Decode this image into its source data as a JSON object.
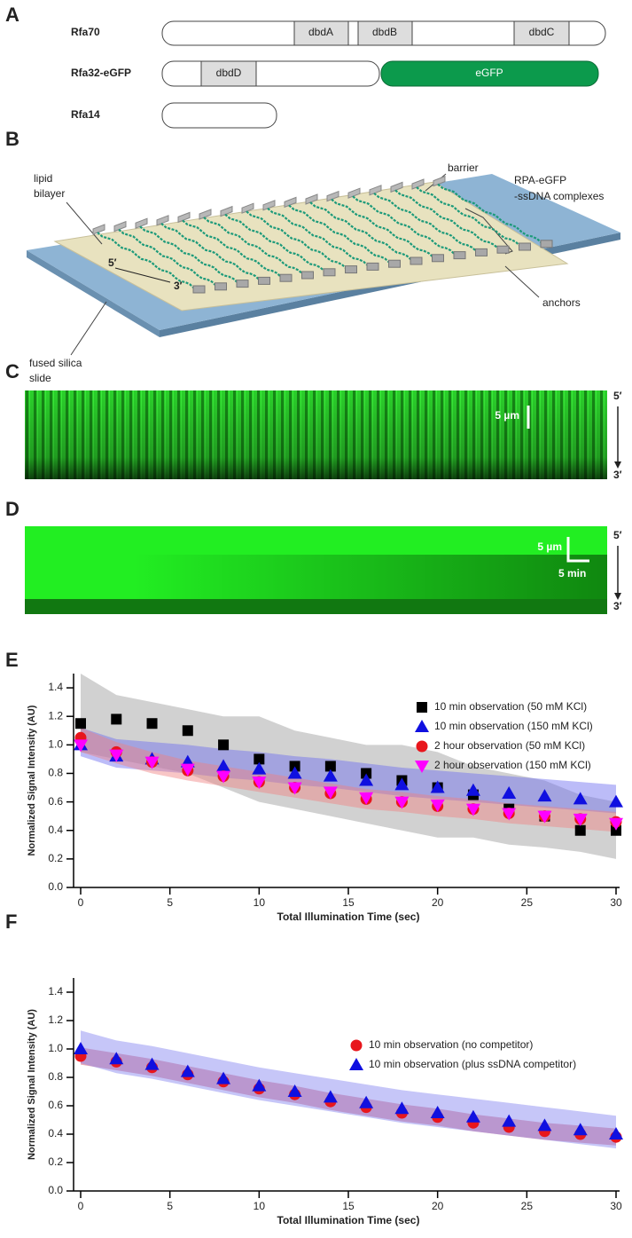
{
  "panel_letters": [
    "A",
    "B",
    "C",
    "D",
    "E",
    "F"
  ],
  "domains": {
    "proteins": [
      "Rfa70",
      "Rfa32-eGFP",
      "Rfa14"
    ],
    "boxes": [
      "dbdA",
      "dbdB",
      "dbdC",
      "dbdD",
      "eGFP"
    ]
  },
  "schematic": {
    "lipid_bilayer": [
      "lipid",
      "bilayer"
    ],
    "barrier": "barrier",
    "complexes": [
      "RPA-eGFP",
      "-ssDNA complexes"
    ],
    "five_prime": "5′",
    "three_prime": "3′",
    "slide": [
      "fused silica",
      "slide"
    ],
    "anchors": "anchors"
  },
  "kymograph_c": {
    "scale": "5 µm",
    "top": "5′",
    "bottom": "3′"
  },
  "kymograph_d": {
    "scale": "5 µm",
    "time": "5 min",
    "top": "5′",
    "bottom": "3′"
  },
  "chart_data": [
    {
      "type": "scatter",
      "xlabel": "Total Illumination Time (sec)",
      "ylabel": "Normalized Signal Intensity (AU)",
      "xlim": [
        0,
        30
      ],
      "ylim": [
        0,
        1.5
      ],
      "xticks": [
        0,
        5,
        10,
        15,
        20,
        25,
        30
      ],
      "yticks": [
        {
          "value": 0,
          "label": "0.0"
        },
        0.2,
        0.4,
        0.6,
        0.8,
        {
          "value": 1,
          "label": "1.0"
        },
        1.2,
        1.4
      ],
      "x": [
        0,
        2,
        4,
        6,
        8,
        10,
        12,
        14,
        16,
        18,
        20,
        22,
        24,
        26,
        28,
        30
      ],
      "series": [
        {
          "name": "10 min observation (50 mM KCl)",
          "color": "#000000",
          "marker": "square",
          "band_color": "#9a9a9a",
          "values": [
            1.15,
            1.18,
            1.15,
            1.1,
            1.0,
            0.9,
            0.85,
            0.85,
            0.8,
            0.75,
            0.7,
            0.65,
            0.55,
            0.5,
            0.4,
            0.4
          ],
          "lower": [
            0.95,
            0.9,
            0.85,
            0.8,
            0.7,
            0.6,
            0.55,
            0.5,
            0.45,
            0.4,
            0.35,
            0.35,
            0.3,
            0.28,
            0.25,
            0.2
          ],
          "upper": [
            1.5,
            1.35,
            1.3,
            1.25,
            1.2,
            1.2,
            1.1,
            1.05,
            1.0,
            1.0,
            0.95,
            0.85,
            0.8,
            0.75,
            0.65,
            0.6
          ]
        },
        {
          "name": "10 min observation (150 mM KCl)",
          "color": "#1010e0",
          "marker": "triangle",
          "band_color": "#6a6af0",
          "values": [
            1.0,
            0.92,
            0.9,
            0.88,
            0.85,
            0.83,
            0.8,
            0.78,
            0.75,
            0.72,
            0.7,
            0.68,
            0.66,
            0.64,
            0.62,
            0.6
          ],
          "lower": [
            0.92,
            0.84,
            0.82,
            0.8,
            0.77,
            0.75,
            0.72,
            0.7,
            0.67,
            0.64,
            0.62,
            0.6,
            0.58,
            0.56,
            0.54,
            0.52
          ],
          "upper": [
            1.12,
            1.04,
            1.02,
            1.0,
            0.97,
            0.95,
            0.92,
            0.9,
            0.87,
            0.84,
            0.82,
            0.8,
            0.78,
            0.76,
            0.74,
            0.72
          ]
        },
        {
          "name": "2 hour observation (50 mM KCl)",
          "color": "#e8161c",
          "marker": "circle",
          "band_color": "#f08080",
          "values": [
            1.05,
            0.95,
            0.88,
            0.82,
            0.78,
            0.74,
            0.7,
            0.66,
            0.62,
            0.6,
            0.57,
            0.55,
            0.52,
            0.5,
            0.48,
            0.46
          ],
          "lower": [
            0.95,
            0.87,
            0.8,
            0.75,
            0.71,
            0.67,
            0.63,
            0.59,
            0.55,
            0.53,
            0.5,
            0.48,
            0.45,
            0.43,
            0.41,
            0.39
          ],
          "upper": [
            1.12,
            1.02,
            0.95,
            0.89,
            0.85,
            0.81,
            0.77,
            0.73,
            0.69,
            0.67,
            0.64,
            0.62,
            0.59,
            0.57,
            0.55,
            0.53
          ]
        },
        {
          "name": "2 hour observation (150 mM KCl)",
          "color": "#ff00ff",
          "marker": "down-triangle",
          "values": [
            1.0,
            0.93,
            0.88,
            0.83,
            0.78,
            0.74,
            0.7,
            0.67,
            0.63,
            0.6,
            0.58,
            0.55,
            0.52,
            0.5,
            0.48,
            0.45
          ]
        }
      ]
    },
    {
      "type": "scatter",
      "xlabel": "Total Illumination Time (sec)",
      "ylabel": "Normalized Signal Intensity (AU)",
      "xlim": [
        0,
        30
      ],
      "ylim": [
        0,
        1.5
      ],
      "xticks": [
        0,
        5,
        10,
        15,
        20,
        25,
        30
      ],
      "yticks": [
        {
          "value": 0,
          "label": "0.0"
        },
        0.2,
        0.4,
        0.6,
        0.8,
        {
          "value": 1,
          "label": "1.0"
        },
        1.2,
        1.4
      ],
      "x": [
        0,
        2,
        4,
        6,
        8,
        10,
        12,
        14,
        16,
        18,
        20,
        22,
        24,
        26,
        28,
        30
      ],
      "series": [
        {
          "name": "10 min observation (no competitor)",
          "color": "#e8161c",
          "marker": "circle",
          "band_color": "#d0405a",
          "values": [
            0.95,
            0.91,
            0.87,
            0.82,
            0.77,
            0.72,
            0.68,
            0.63,
            0.59,
            0.55,
            0.52,
            0.48,
            0.45,
            0.42,
            0.4,
            0.38
          ],
          "lower": [
            0.89,
            0.85,
            0.81,
            0.76,
            0.71,
            0.66,
            0.62,
            0.57,
            0.53,
            0.49,
            0.46,
            0.42,
            0.39,
            0.36,
            0.34,
            0.32
          ],
          "upper": [
            1.01,
            0.97,
            0.93,
            0.88,
            0.83,
            0.78,
            0.74,
            0.69,
            0.65,
            0.61,
            0.58,
            0.54,
            0.51,
            0.48,
            0.46,
            0.44
          ]
        },
        {
          "name": "10 min observation (plus ssDNA competitor)",
          "color": "#1010e0",
          "marker": "triangle",
          "band_color": "#8080f0",
          "values": [
            1.0,
            0.93,
            0.89,
            0.84,
            0.79,
            0.74,
            0.7,
            0.66,
            0.62,
            0.58,
            0.55,
            0.52,
            0.49,
            0.46,
            0.43,
            0.4
          ],
          "lower": [
            0.9,
            0.83,
            0.79,
            0.74,
            0.69,
            0.64,
            0.6,
            0.56,
            0.52,
            0.48,
            0.45,
            0.42,
            0.39,
            0.36,
            0.33,
            0.3
          ],
          "upper": [
            1.13,
            1.06,
            1.02,
            0.97,
            0.92,
            0.87,
            0.83,
            0.79,
            0.75,
            0.71,
            0.68,
            0.65,
            0.62,
            0.59,
            0.56,
            0.53
          ]
        }
      ]
    }
  ]
}
